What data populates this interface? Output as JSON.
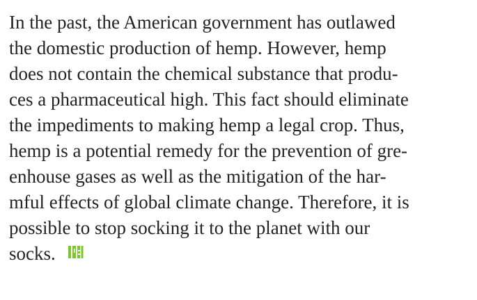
{
  "paragraph": {
    "lines": [
      "In the past, the American government has outlawed",
      "the domestic production of hemp. However, hemp",
      "does not contain the chemical substance that produ-",
      "ces a pharmaceutical high. This fact should eliminate",
      "the impediments to making hemp a legal crop. Thus,",
      "hemp is a potential remedy for the prevention of gre-",
      "enhouse gases as well as the mitigation of the har-",
      "mful effects of global climate change. Therefore, it is",
      "possible to stop socking it to the planet with our",
      "socks."
    ]
  }
}
